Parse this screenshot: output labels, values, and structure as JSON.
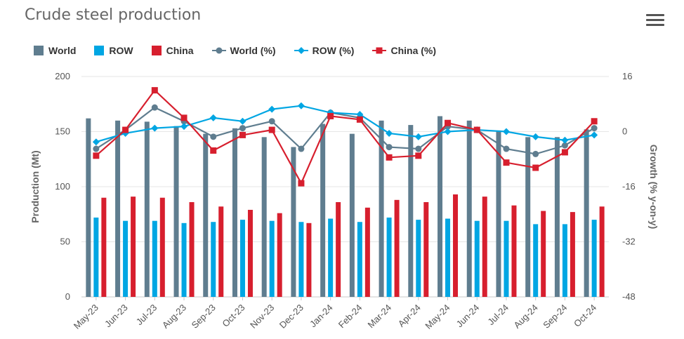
{
  "title": "Crude steel production",
  "menu": {
    "icon": "hamburger-menu-icon"
  },
  "chart_data": {
    "type": "bar",
    "title": "Crude steel production",
    "categories": [
      "May-23",
      "Jun-23",
      "Jul-23",
      "Aug-23",
      "Sep-23",
      "Oct-23",
      "Nov-23",
      "Dec-23",
      "Jan-24",
      "Feb-24",
      "Mar-24",
      "Apr-24",
      "May-24",
      "Jun-24",
      "Jul-24",
      "Aug-24",
      "Sep-24",
      "Oct-24"
    ],
    "ylabel": "Production (Mt)",
    "ylabel_right": "Growth (% y-on-y)",
    "ylim": [
      0,
      200
    ],
    "ylim_right": [
      -48,
      16
    ],
    "yticks": [
      "0",
      "50",
      "100",
      "150",
      "200"
    ],
    "yticks_right": [
      "-48",
      "-32",
      "-16",
      "0",
      "16"
    ],
    "legend_position": "top-left",
    "grid": true,
    "series": [
      {
        "name": "World",
        "kind": "bar",
        "axis": "left",
        "color": "#5f7d8f",
        "values": [
          162,
          160,
          159,
          155,
          148,
          153,
          145,
          136,
          157,
          148,
          160,
          156,
          164,
          160,
          151,
          145,
          145,
          152
        ]
      },
      {
        "name": "ROW",
        "kind": "bar",
        "axis": "left",
        "color": "#00a6e3",
        "values": [
          72,
          69,
          69,
          67,
          68,
          70,
          69,
          68,
          71,
          68,
          72,
          70,
          71,
          69,
          69,
          66,
          66,
          70
        ]
      },
      {
        "name": "China",
        "kind": "bar",
        "axis": "left",
        "color": "#d71f2e",
        "values": [
          90,
          91,
          90,
          86,
          82,
          79,
          76,
          67,
          86,
          81,
          88,
          86,
          93,
          91,
          83,
          78,
          77,
          82
        ]
      },
      {
        "name": "World (%)",
        "kind": "line",
        "axis": "right",
        "color": "#5f7d8f",
        "marker": "circle",
        "values": [
          -5,
          0.5,
          7,
          3,
          -1.5,
          1,
          3,
          -5,
          5.5,
          4,
          -4.5,
          -5,
          1.5,
          0.5,
          -5,
          -6.5,
          -4,
          1
        ]
      },
      {
        "name": "ROW (%)",
        "kind": "line",
        "axis": "right",
        "color": "#00a6e3",
        "marker": "diamond",
        "values": [
          -3,
          -0.5,
          1,
          1.5,
          4,
          3,
          6.5,
          7.5,
          5.5,
          5,
          -0.5,
          -1.5,
          0,
          0.5,
          0,
          -1.5,
          -2.5,
          -1
        ]
      },
      {
        "name": "China (%)",
        "kind": "line",
        "axis": "right",
        "color": "#d71f2e",
        "marker": "square",
        "values": [
          -7,
          0.5,
          12,
          4,
          -5.5,
          -1,
          0.5,
          -15,
          4.5,
          3.5,
          -7.5,
          -7,
          2.5,
          0.5,
          -9,
          -10.5,
          -6,
          3
        ]
      }
    ]
  }
}
